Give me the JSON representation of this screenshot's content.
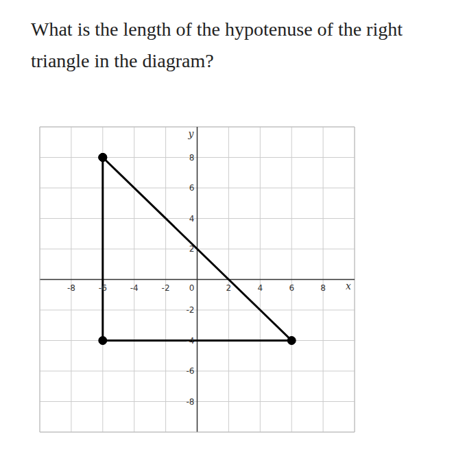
{
  "chart_data": {
    "type": "line",
    "title": "What is the length of the hypotenuse of the right triangle in the diagram?",
    "x_label": "x",
    "y_label": "y",
    "x": [
      -6,
      -6,
      6,
      -6
    ],
    "values": [
      8,
      -4,
      -4,
      8
    ],
    "color": "#000000",
    "marker": "circle",
    "xlim": [
      -10,
      10
    ],
    "ylim": [
      -10,
      10
    ],
    "xticks": [
      -8,
      -6,
      -4,
      -2,
      0,
      2,
      4,
      6,
      8
    ],
    "yticks": [
      -8,
      -6,
      -4,
      -2,
      2,
      4,
      6,
      8
    ],
    "grid": true
  }
}
